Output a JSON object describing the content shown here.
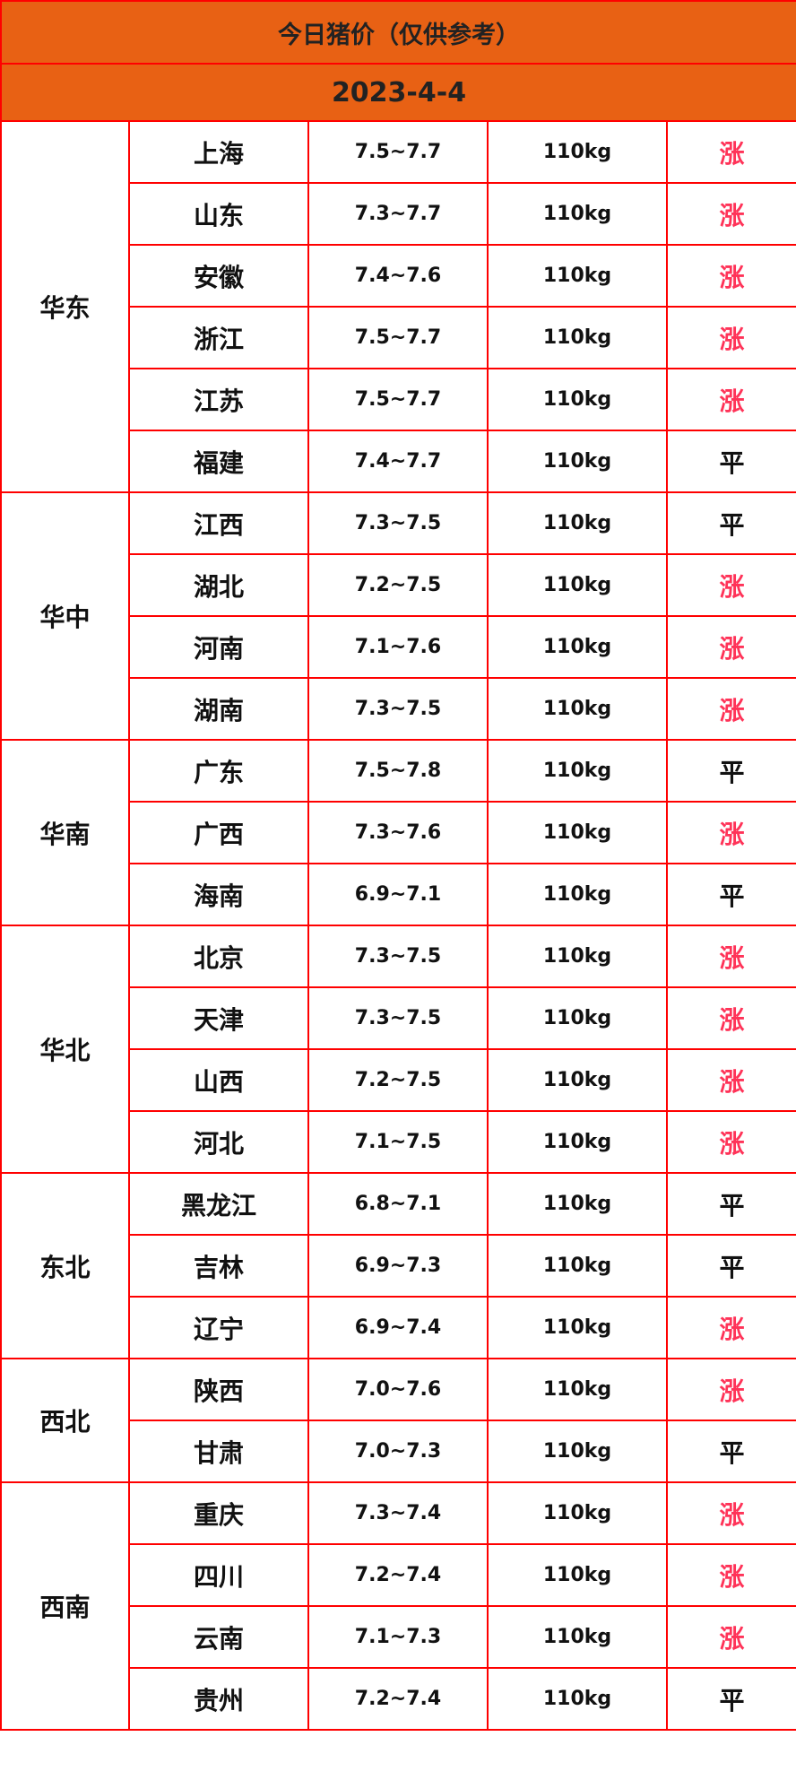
{
  "title": "今日猪价（仅供参考）",
  "date": "2023-4-4",
  "colors": {
    "header_bg": "#e86114",
    "border": "#ff0000",
    "rise": "#ff3358",
    "flat": "#111111"
  },
  "regions": [
    {
      "name": "华东",
      "rows": [
        {
          "province": "上海",
          "price": "7.5~7.7",
          "weight": "110kg",
          "trend": "涨"
        },
        {
          "province": "山东",
          "price": "7.3~7.7",
          "weight": "110kg",
          "trend": "涨"
        },
        {
          "province": "安徽",
          "price": "7.4~7.6",
          "weight": "110kg",
          "trend": "涨"
        },
        {
          "province": "浙江",
          "price": "7.5~7.7",
          "weight": "110kg",
          "trend": "涨"
        },
        {
          "province": "江苏",
          "price": "7.5~7.7",
          "weight": "110kg",
          "trend": "涨"
        },
        {
          "province": "福建",
          "price": "7.4~7.7",
          "weight": "110kg",
          "trend": "平"
        }
      ]
    },
    {
      "name": "华中",
      "rows": [
        {
          "province": "江西",
          "price": "7.3~7.5",
          "weight": "110kg",
          "trend": "平"
        },
        {
          "province": "湖北",
          "price": "7.2~7.5",
          "weight": "110kg",
          "trend": "涨"
        },
        {
          "province": "河南",
          "price": "7.1~7.6",
          "weight": "110kg",
          "trend": "涨"
        },
        {
          "province": "湖南",
          "price": "7.3~7.5",
          "weight": "110kg",
          "trend": "涨"
        }
      ]
    },
    {
      "name": "华南",
      "rows": [
        {
          "province": "广东",
          "price": "7.5~7.8",
          "weight": "110kg",
          "trend": "平"
        },
        {
          "province": "广西",
          "price": "7.3~7.6",
          "weight": "110kg",
          "trend": "涨"
        },
        {
          "province": "海南",
          "price": "6.9~7.1",
          "weight": "110kg",
          "trend": "平"
        }
      ]
    },
    {
      "name": "华北",
      "rows": [
        {
          "province": "北京",
          "price": "7.3~7.5",
          "weight": "110kg",
          "trend": "涨"
        },
        {
          "province": "天津",
          "price": "7.3~7.5",
          "weight": "110kg",
          "trend": "涨"
        },
        {
          "province": "山西",
          "price": "7.2~7.5",
          "weight": "110kg",
          "trend": "涨"
        },
        {
          "province": "河北",
          "price": "7.1~7.5",
          "weight": "110kg",
          "trend": "涨"
        }
      ]
    },
    {
      "name": "东北",
      "rows": [
        {
          "province": "黑龙江",
          "price": "6.8~7.1",
          "weight": "110kg",
          "trend": "平"
        },
        {
          "province": "吉林",
          "price": "6.9~7.3",
          "weight": "110kg",
          "trend": "平"
        },
        {
          "province": "辽宁",
          "price": "6.9~7.4",
          "weight": "110kg",
          "trend": "涨"
        }
      ]
    },
    {
      "name": "西北",
      "rows": [
        {
          "province": "陕西",
          "price": "7.0~7.6",
          "weight": "110kg",
          "trend": "涨"
        },
        {
          "province": "甘肃",
          "price": "7.0~7.3",
          "weight": "110kg",
          "trend": "平"
        }
      ]
    },
    {
      "name": "西南",
      "rows": [
        {
          "province": "重庆",
          "price": "7.3~7.4",
          "weight": "110kg",
          "trend": "涨"
        },
        {
          "province": "四川",
          "price": "7.2~7.4",
          "weight": "110kg",
          "trend": "涨"
        },
        {
          "province": "云南",
          "price": "7.1~7.3",
          "weight": "110kg",
          "trend": "涨"
        },
        {
          "province": "贵州",
          "price": "7.2~7.4",
          "weight": "110kg",
          "trend": "平"
        }
      ]
    }
  ]
}
